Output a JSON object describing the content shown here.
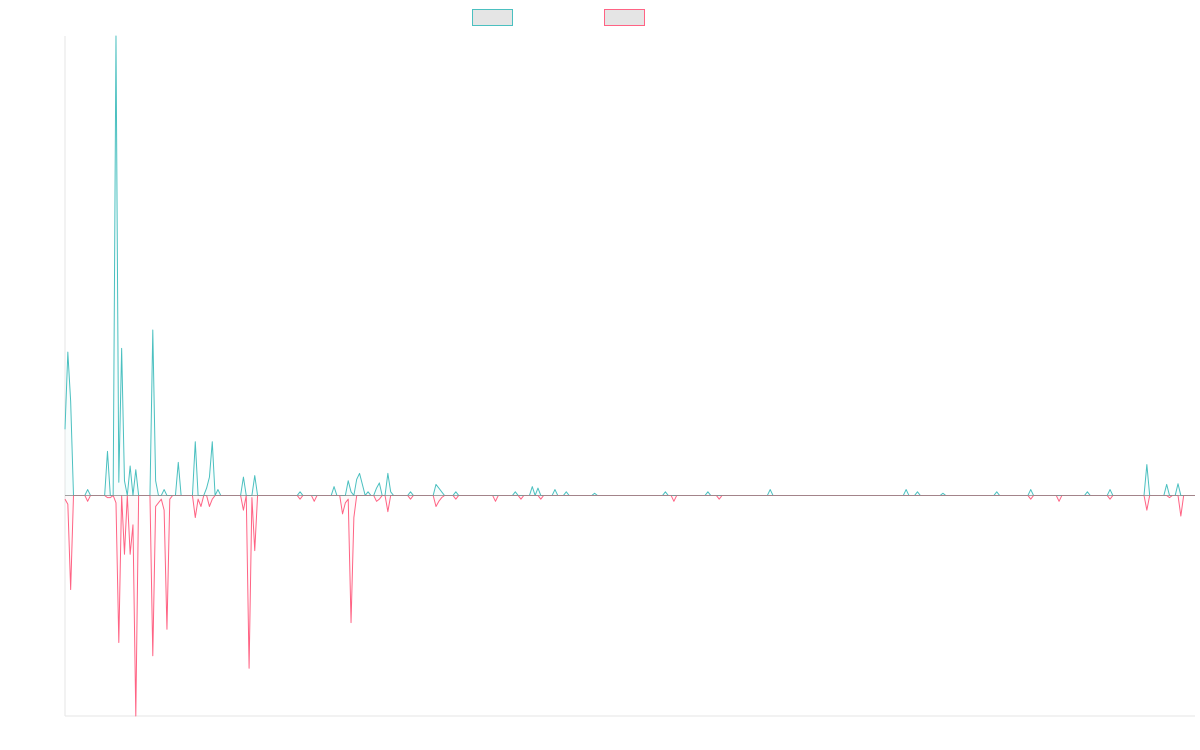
{
  "chart_data": {
    "type": "line",
    "title": "",
    "xlabel": "",
    "ylabel": "",
    "x_count": 400,
    "ylim": [
      -300,
      625
    ],
    "baseline": 0,
    "grid": false,
    "legend_position": "top-center",
    "series": [
      {
        "color": "#4bc0c0",
        "fill": "#e5e5e5",
        "direction": "positive",
        "values": [
          [
            0,
            90
          ],
          [
            1,
            195
          ],
          [
            2,
            128
          ],
          [
            3,
            0
          ],
          [
            8,
            8
          ],
          [
            9,
            0
          ],
          [
            14,
            0
          ],
          [
            15,
            60
          ],
          [
            16,
            0
          ],
          [
            17,
            0
          ],
          [
            18,
            625
          ],
          [
            19,
            18
          ],
          [
            20,
            200
          ],
          [
            21,
            20
          ],
          [
            22,
            0
          ],
          [
            23,
            40
          ],
          [
            24,
            0
          ],
          [
            25,
            35
          ],
          [
            26,
            0
          ],
          [
            30,
            0
          ],
          [
            31,
            225
          ],
          [
            32,
            20
          ],
          [
            34,
            0
          ],
          [
            35,
            8
          ],
          [
            36,
            0
          ],
          [
            40,
            45
          ],
          [
            41,
            0
          ],
          [
            45,
            0
          ],
          [
            46,
            73
          ],
          [
            47,
            0
          ],
          [
            48,
            0
          ],
          [
            50,
            10
          ],
          [
            51,
            25
          ],
          [
            52,
            73
          ],
          [
            53,
            0
          ],
          [
            54,
            8
          ],
          [
            55,
            0
          ],
          [
            62,
            0
          ],
          [
            63,
            25
          ],
          [
            64,
            0
          ],
          [
            66,
            0
          ],
          [
            67,
            27
          ],
          [
            68,
            0
          ],
          [
            82,
            0
          ],
          [
            83,
            5
          ],
          [
            84,
            0
          ],
          [
            94,
            0
          ],
          [
            95,
            12
          ],
          [
            96,
            0
          ],
          [
            99,
            0
          ],
          [
            100,
            20
          ],
          [
            101,
            5
          ],
          [
            102,
            0
          ],
          [
            103,
            22
          ],
          [
            104,
            30
          ],
          [
            105,
            15
          ],
          [
            107,
            5
          ],
          [
            108,
            0
          ],
          [
            110,
            10
          ],
          [
            111,
            17
          ],
          [
            112,
            0
          ],
          [
            113,
            0
          ],
          [
            114,
            30
          ],
          [
            115,
            5
          ],
          [
            116,
            0
          ],
          [
            121,
            0
          ],
          [
            122,
            5
          ],
          [
            123,
            0
          ],
          [
            130,
            0
          ],
          [
            131,
            15
          ],
          [
            132,
            10
          ],
          [
            133,
            5
          ],
          [
            134,
            0
          ],
          [
            137,
            0
          ],
          [
            138,
            5
          ],
          [
            139,
            0
          ],
          [
            158,
            0
          ],
          [
            159,
            5
          ],
          [
            160,
            0
          ],
          [
            164,
            0
          ],
          [
            165,
            12
          ],
          [
            166,
            0
          ],
          [
            167,
            10
          ],
          [
            168,
            0
          ],
          [
            172,
            0
          ],
          [
            173,
            8
          ],
          [
            174,
            0
          ],
          [
            176,
            0
          ],
          [
            177,
            5
          ],
          [
            178,
            0
          ],
          [
            186,
            0
          ],
          [
            187,
            3
          ],
          [
            188,
            0
          ],
          [
            211,
            0
          ],
          [
            212,
            5
          ],
          [
            213,
            0
          ],
          [
            226,
            0
          ],
          [
            227,
            5
          ],
          [
            228,
            0
          ],
          [
            248,
            0
          ],
          [
            249,
            8
          ],
          [
            250,
            0
          ],
          [
            296,
            0
          ],
          [
            297,
            8
          ],
          [
            298,
            0
          ],
          [
            300,
            0
          ],
          [
            301,
            5
          ],
          [
            302,
            0
          ],
          [
            309,
            0
          ],
          [
            310,
            3
          ],
          [
            311,
            0
          ],
          [
            328,
            0
          ],
          [
            329,
            5
          ],
          [
            330,
            0
          ],
          [
            340,
            0
          ],
          [
            341,
            8
          ],
          [
            342,
            0
          ],
          [
            360,
            0
          ],
          [
            361,
            5
          ],
          [
            362,
            0
          ],
          [
            368,
            0
          ],
          [
            369,
            8
          ],
          [
            370,
            0
          ],
          [
            381,
            0
          ],
          [
            382,
            42
          ],
          [
            383,
            0
          ],
          [
            384,
            0
          ],
          [
            385,
            0
          ],
          [
            388,
            0
          ],
          [
            389,
            15
          ],
          [
            390,
            0
          ],
          [
            392,
            0
          ],
          [
            393,
            16
          ],
          [
            394,
            0
          ]
        ]
      },
      {
        "color": "#ff6384",
        "fill": "#e5e5e5",
        "direction": "negative",
        "values": [
          [
            0,
            -5
          ],
          [
            1,
            -12
          ],
          [
            2,
            -128
          ],
          [
            3,
            0
          ],
          [
            8,
            -8
          ],
          [
            9,
            0
          ],
          [
            14,
            0
          ],
          [
            15,
            -3
          ],
          [
            16,
            -3
          ],
          [
            17,
            0
          ],
          [
            18,
            -10
          ],
          [
            19,
            -200
          ],
          [
            20,
            0
          ],
          [
            21,
            -80
          ],
          [
            22,
            0
          ],
          [
            23,
            -80
          ],
          [
            24,
            -40
          ],
          [
            25,
            -300
          ],
          [
            26,
            0
          ],
          [
            30,
            0
          ],
          [
            31,
            -218
          ],
          [
            32,
            -15
          ],
          [
            33,
            -10
          ],
          [
            34,
            -5
          ],
          [
            35,
            -20
          ],
          [
            36,
            -182
          ],
          [
            37,
            -5
          ],
          [
            38,
            0
          ],
          [
            45,
            0
          ],
          [
            46,
            -30
          ],
          [
            47,
            -5
          ],
          [
            48,
            -15
          ],
          [
            49,
            0
          ],
          [
            50,
            0
          ],
          [
            51,
            -15
          ],
          [
            52,
            -5
          ],
          [
            53,
            0
          ],
          [
            62,
            0
          ],
          [
            63,
            -20
          ],
          [
            64,
            0
          ],
          [
            65,
            -235
          ],
          [
            66,
            -3
          ],
          [
            67,
            -75
          ],
          [
            68,
            0
          ],
          [
            82,
            0
          ],
          [
            83,
            -5
          ],
          [
            84,
            0
          ],
          [
            87,
            0
          ],
          [
            88,
            -8
          ],
          [
            89,
            0
          ],
          [
            97,
            0
          ],
          [
            98,
            -25
          ],
          [
            99,
            -10
          ],
          [
            100,
            -5
          ],
          [
            101,
            -173
          ],
          [
            102,
            -30
          ],
          [
            103,
            0
          ],
          [
            110,
            -8
          ],
          [
            111,
            -5
          ],
          [
            112,
            0
          ],
          [
            113,
            0
          ],
          [
            114,
            -22
          ],
          [
            115,
            0
          ],
          [
            121,
            0
          ],
          [
            122,
            -5
          ],
          [
            123,
            0
          ],
          [
            130,
            0
          ],
          [
            131,
            -15
          ],
          [
            132,
            -8
          ],
          [
            133,
            -3
          ],
          [
            134,
            0
          ],
          [
            137,
            0
          ],
          [
            138,
            -5
          ],
          [
            139,
            0
          ],
          [
            151,
            0
          ],
          [
            152,
            -8
          ],
          [
            153,
            0
          ],
          [
            160,
            0
          ],
          [
            161,
            -5
          ],
          [
            162,
            0
          ],
          [
            167,
            0
          ],
          [
            168,
            -5
          ],
          [
            169,
            0
          ],
          [
            214,
            0
          ],
          [
            215,
            -8
          ],
          [
            216,
            0
          ],
          [
            230,
            0
          ],
          [
            231,
            -5
          ],
          [
            232,
            0
          ],
          [
            340,
            0
          ],
          [
            341,
            -5
          ],
          [
            342,
            0
          ],
          [
            350,
            0
          ],
          [
            351,
            -8
          ],
          [
            352,
            0
          ],
          [
            368,
            0
          ],
          [
            369,
            -5
          ],
          [
            370,
            0
          ],
          [
            381,
            0
          ],
          [
            382,
            -20
          ],
          [
            383,
            0
          ],
          [
            389,
            0
          ],
          [
            390,
            -3
          ],
          [
            391,
            0
          ],
          [
            393,
            0
          ],
          [
            394,
            -28
          ],
          [
            395,
            0
          ]
        ]
      }
    ]
  }
}
